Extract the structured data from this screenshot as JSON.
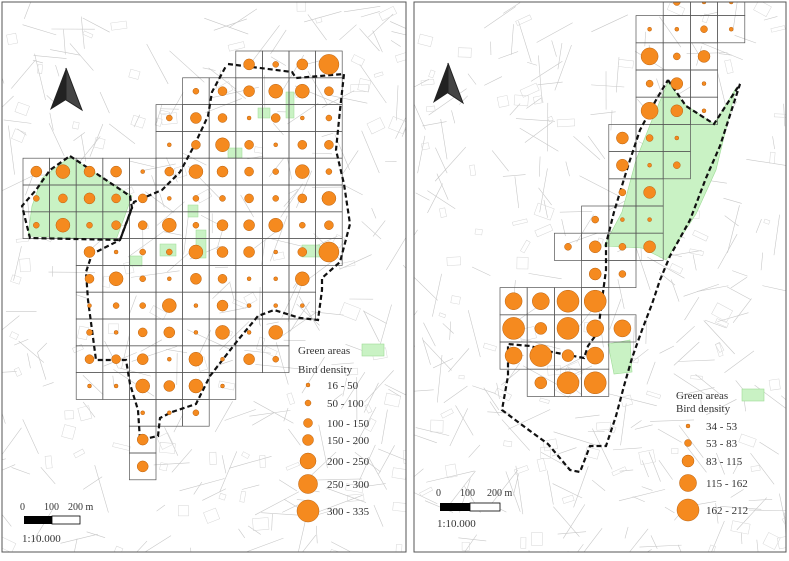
{
  "panels": [
    {
      "id": "left",
      "legend": {
        "green_label": "Green areas",
        "density_label": "Bird density",
        "classes": [
          "16 - 50",
          "50 - 100",
          "100 - 150",
          "150 - 200",
          "200 - 250",
          "250 - 300",
          "300 - 335"
        ]
      },
      "scalebar": {
        "ticks": [
          "0",
          "100",
          "200 m"
        ],
        "ratio": "1:10.000"
      }
    },
    {
      "id": "right",
      "legend": {
        "green_label": "Green areas",
        "density_label": "Bird density",
        "classes": [
          "34 - 53",
          "53 - 83",
          "83 - 115",
          "115 - 162",
          "162 - 212"
        ]
      },
      "scalebar": {
        "ticks": [
          "0",
          "100",
          "200 m"
        ],
        "ratio": "1:10.000"
      }
    }
  ],
  "colors": {
    "point_fill": "#f58a1f",
    "point_stroke": "#b8600e",
    "green_fill": "#c9f2c4",
    "boundary": "#111111",
    "grid": "#555555",
    "street": "#c8c8c8",
    "frame": "#555555"
  },
  "icons": [
    "north-arrow-icon"
  ]
}
